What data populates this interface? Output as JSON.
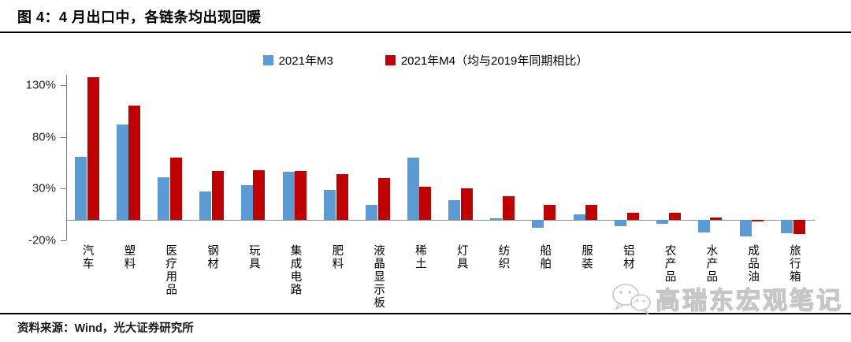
{
  "page": {
    "title": "图 4：4 月出口中，各链条均出现回暖",
    "source": "资料来源：Wind，光大证券研究所"
  },
  "watermark": {
    "text": "高瑞东宏观笔记",
    "icon": "wechat-icon"
  },
  "legend": [
    {
      "label": "2021年M3",
      "color": "#5B9BD5"
    },
    {
      "label": "2021年M4（均与2019年同期相比）",
      "color": "#C00000"
    }
  ],
  "chart_data": {
    "type": "bar",
    "title": "图 4：4 月出口中，各链条均出现回暖",
    "unit": "percent",
    "categories": [
      "汽车",
      "塑料",
      "医疗用品",
      "钢材",
      "玩具",
      "集成电路",
      "肥料",
      "液晶显示板",
      "稀土",
      "灯具",
      "纺织",
      "船舶",
      "服装",
      "铝材",
      "农产品",
      "水产品",
      "成品油",
      "旅行箱"
    ],
    "series": [
      {
        "name": "2021年M3",
        "color": "#5B9BD5",
        "values": [
          61,
          92,
          41,
          27,
          33,
          46,
          29,
          14,
          60,
          19,
          1,
          -8,
          5,
          -6,
          -4,
          -12,
          -16,
          -13
        ]
      },
      {
        "name": "2021年M4（均与2019年同期相比）",
        "color": "#C00000",
        "values": [
          138,
          110,
          60,
          47,
          48,
          47,
          44,
          40,
          32,
          30,
          23,
          14,
          14,
          7,
          7,
          2,
          -2,
          -14
        ]
      }
    ],
    "y_axis": {
      "tick_labels": [
        "130%",
        "80%",
        "30%",
        "-20%"
      ],
      "tick_values": [
        130,
        80,
        30,
        -20
      ],
      "min": -20,
      "max": 140
    },
    "grid": false,
    "legend_position": "top"
  }
}
